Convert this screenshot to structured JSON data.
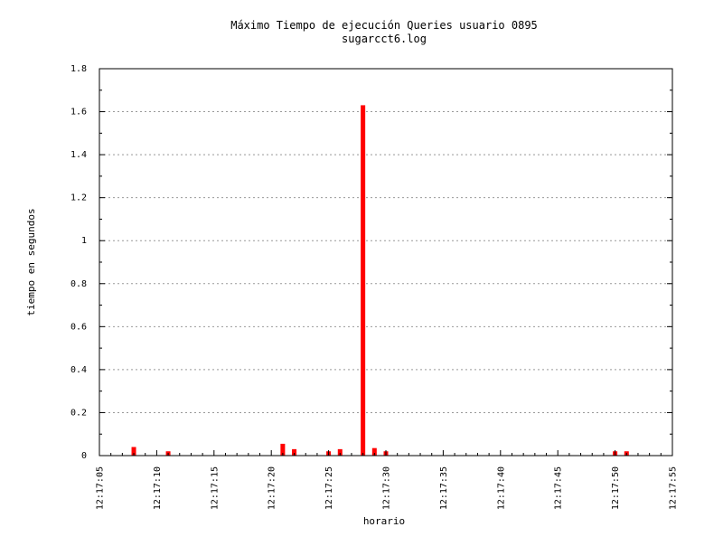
{
  "chart_data": {
    "type": "bar",
    "title": "Máximo Tiempo de ejecución Queries usuario 0895",
    "subtitle": "sugarcct6.log",
    "xlabel": "horario",
    "ylabel": "tiempo en segundos",
    "x_tick_labels": [
      "12:17:05",
      "12:17:10",
      "12:17:15",
      "12:17:20",
      "12:17:25",
      "12:17:30",
      "12:17:35",
      "12:17:40",
      "12:17:45",
      "12:17:50",
      "12:17:55"
    ],
    "y_tick_labels": [
      "0",
      "0.2",
      "0.4",
      "0.6",
      "0.8",
      "1",
      "1.2",
      "1.4",
      "1.6",
      "1.8"
    ],
    "xlim_seconds": [
      5,
      55
    ],
    "ylim": [
      0,
      1.8
    ],
    "y_major_step": 0.2,
    "x_major_step_seconds": 5,
    "x_minor_step_seconds": 1,
    "grid": "horizontal dotted",
    "bar_color": "#ff0000",
    "points": [
      {
        "x": "12:17:08",
        "y": 0.04
      },
      {
        "x": "12:17:11",
        "y": 0.02
      },
      {
        "x": "12:17:21",
        "y": 0.055
      },
      {
        "x": "12:17:22",
        "y": 0.03
      },
      {
        "x": "12:17:25",
        "y": 0.02
      },
      {
        "x": "12:17:26",
        "y": 0.03
      },
      {
        "x": "12:17:28",
        "y": 1.63
      },
      {
        "x": "12:17:29",
        "y": 0.035
      },
      {
        "x": "12:17:30",
        "y": 0.02
      },
      {
        "x": "12:17:50",
        "y": 0.02
      },
      {
        "x": "12:17:51",
        "y": 0.02
      }
    ]
  }
}
